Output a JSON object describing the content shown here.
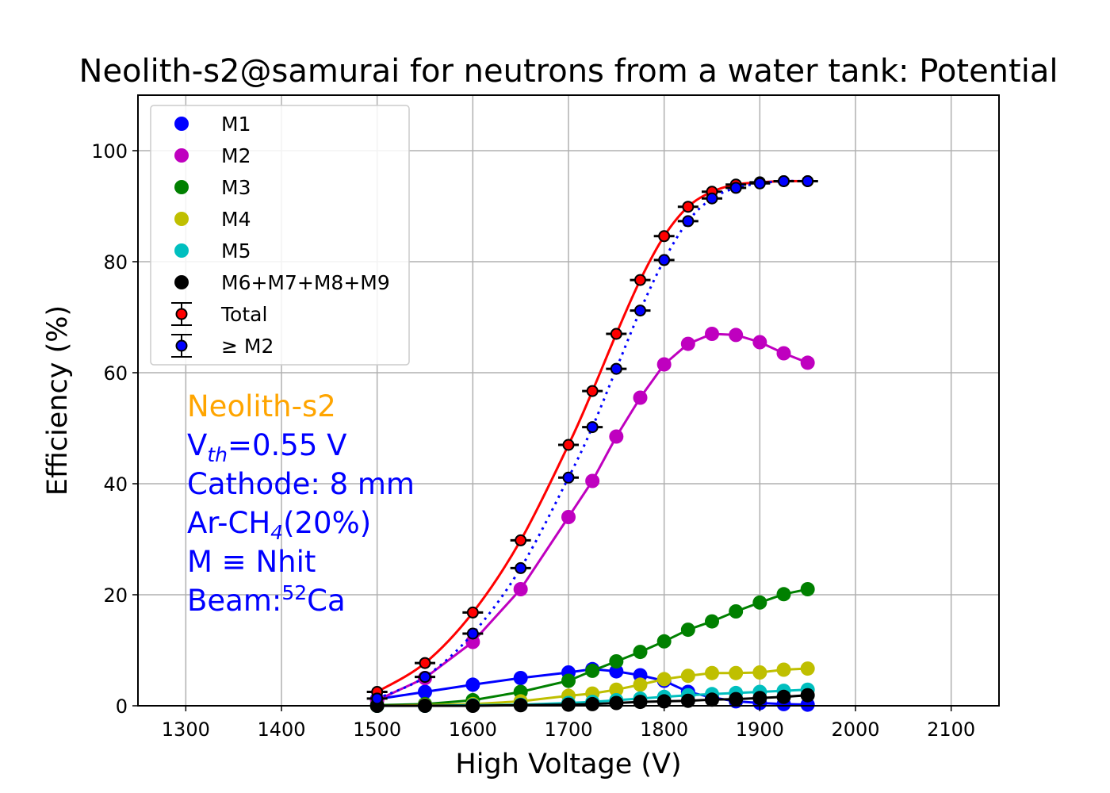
{
  "chart_data": {
    "type": "line",
    "title": "Neolith-s2@samurai for neutrons from a water tank: Potential",
    "xlabel": "High Voltage (V)",
    "ylabel": "Efficiency (%)",
    "xlim": [
      1250,
      2150
    ],
    "ylim": [
      0,
      110
    ],
    "xticks": [
      1300,
      1400,
      1500,
      1600,
      1700,
      1800,
      1900,
      2000,
      2100
    ],
    "yticks": [
      0,
      20,
      40,
      60,
      80,
      100
    ],
    "grid": true,
    "legend_position": "top-left",
    "x": [
      1500,
      1550,
      1600,
      1650,
      1700,
      1725,
      1750,
      1775,
      1800,
      1825,
      1850,
      1875,
      1900,
      1925,
      1950
    ],
    "series": [
      {
        "name": "M1",
        "color": "#0000ff",
        "marker": "dot",
        "line": "solid",
        "values": [
          1.2,
          2.5,
          3.8,
          5.0,
          6.0,
          6.6,
          6.2,
          5.5,
          4.5,
          2.5,
          1.5,
          0.8,
          0.5,
          0.3,
          0.2
        ]
      },
      {
        "name": "M2",
        "color": "#bf00bf",
        "marker": "dot",
        "line": "solid",
        "values": [
          1.0,
          5.0,
          11.5,
          21.0,
          34.0,
          40.5,
          48.5,
          55.5,
          61.5,
          65.2,
          67.0,
          66.8,
          65.5,
          63.5,
          61.8
        ]
      },
      {
        "name": "M3",
        "color": "#008000",
        "marker": "dot",
        "line": "solid",
        "values": [
          0.1,
          0.3,
          1.0,
          2.5,
          4.5,
          6.3,
          8.0,
          9.7,
          11.6,
          13.7,
          15.2,
          17.0,
          18.6,
          20.1,
          21.0
        ]
      },
      {
        "name": "M4",
        "color": "#bfbf00",
        "marker": "dot",
        "line": "solid",
        "values": [
          0.0,
          0.1,
          0.3,
          0.8,
          1.8,
          2.2,
          2.9,
          3.8,
          4.8,
          5.4,
          5.9,
          5.9,
          6.0,
          6.5,
          6.7
        ]
      },
      {
        "name": "M5",
        "color": "#00bfbf",
        "marker": "dot",
        "line": "solid",
        "values": [
          0.0,
          0.0,
          0.1,
          0.2,
          0.5,
          0.7,
          1.0,
          1.3,
          1.6,
          1.9,
          2.1,
          2.3,
          2.5,
          2.7,
          2.9
        ]
      },
      {
        "name": "M6+M7+M8+M9",
        "color": "#000000",
        "marker": "dot",
        "line": "solid",
        "values": [
          0.0,
          0.0,
          0.0,
          0.1,
          0.2,
          0.3,
          0.5,
          0.7,
          0.8,
          0.9,
          1.1,
          1.2,
          1.4,
          1.6,
          1.9
        ]
      },
      {
        "name": "Total",
        "color": "#ff0000",
        "marker": "errorbar",
        "line": "solid",
        "values": [
          2.5,
          7.7,
          16.8,
          29.8,
          47.0,
          56.7,
          67.0,
          76.7,
          84.6,
          89.9,
          92.6,
          93.9,
          94.3,
          94.5,
          94.5
        ]
      },
      {
        "name": " ≥ M2",
        "color": "#0000ff",
        "marker": "errorbar",
        "line": "dotted",
        "values": [
          1.3,
          5.2,
          13.0,
          24.8,
          41.1,
          50.2,
          60.7,
          71.2,
          80.3,
          87.3,
          91.4,
          93.3,
          94.1,
          94.5,
          94.5
        ]
      }
    ],
    "annotations": [
      {
        "text": "Neolith-s2",
        "color": "#ffa500"
      },
      {
        "text": "V",
        "sub": "th",
        "rest": "=0.55 V",
        "color": "#0000ff"
      },
      {
        "text": "Cathode: 8 mm",
        "color": "#0000ff"
      },
      {
        "text": "Ar-CH",
        "sub": "4",
        "rest": "(20%)",
        "color": "#0000ff"
      },
      {
        "text": "M ≡ Nhit",
        "color": "#0000ff"
      },
      {
        "text": "Beam:",
        "sup": "52",
        "rest": "Ca",
        "color": "#0000ff"
      }
    ]
  }
}
